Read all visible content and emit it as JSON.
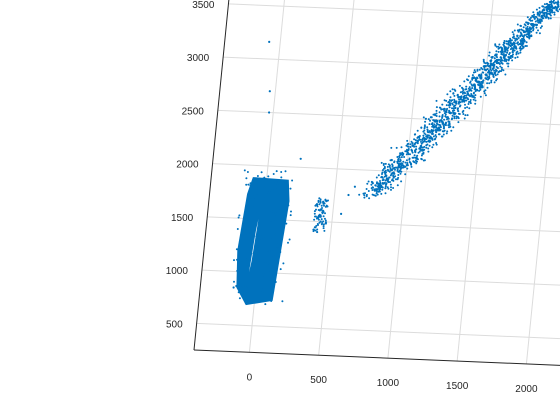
{
  "chart_data": {
    "type": "scatter",
    "title": "",
    "xlabel": "",
    "ylabel": "",
    "zlabel": "",
    "view": "3d",
    "grid": true,
    "marker_color": "#0072BD",
    "x_ticks": [
      "0",
      "500",
      "1000",
      "1500",
      "2000"
    ],
    "y_ticks": [
      "500",
      "1000",
      "1500",
      "2000",
      "2500",
      "3000",
      "3500"
    ],
    "xlim": [
      -400,
      2200
    ],
    "ylim": [
      250,
      3650
    ],
    "clusters": [
      {
        "name": "dense block",
        "shape": "filled block",
        "x_range": [
          -120,
          150
        ],
        "y_range": [
          700,
          1880
        ]
      },
      {
        "name": "diagonal band",
        "shape": "scatter band",
        "from": [
          750,
          1750
        ],
        "to": [
          1950,
          3650
        ],
        "density": "high"
      },
      {
        "name": "small streak",
        "shape": "short vertical streak",
        "x_range": [
          370,
          460
        ],
        "y_range": [
          1400,
          1720
        ]
      },
      {
        "name": "sparse points",
        "shape": "isolated points",
        "points": [
          [
            -80,
            3160
          ],
          [
            -40,
            2700
          ],
          [
            -30,
            2500
          ],
          [
            150,
            1200
          ],
          [
            -160,
            850
          ],
          [
            230,
            2080
          ],
          [
            560,
            1580
          ],
          [
            600,
            1760
          ],
          [
            640,
            1840
          ]
        ]
      }
    ]
  }
}
